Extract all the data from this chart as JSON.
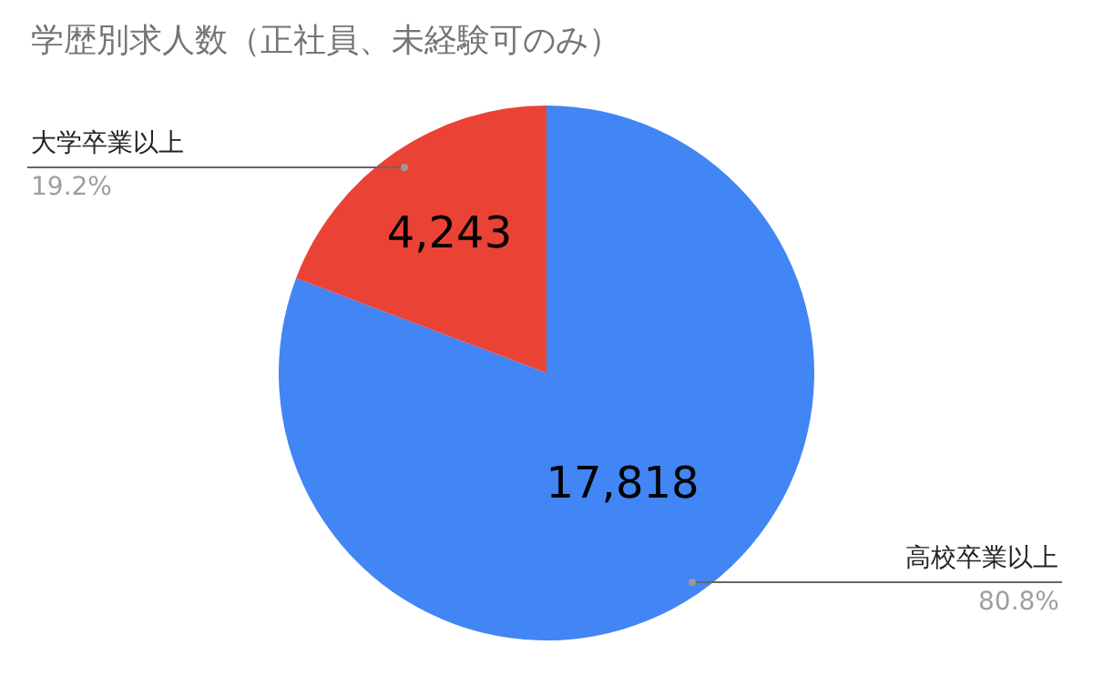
{
  "chart_data": {
    "type": "pie",
    "title": "学歴別求人数（正社員、未経験可のみ）",
    "categories": [
      "大学卒業以上",
      "高校卒業以上"
    ],
    "values": [
      4243,
      17818
    ],
    "colors": [
      "#ea4335",
      "#4285f4"
    ],
    "value_labels": [
      "4,243",
      "17,818"
    ],
    "annotations": [
      "19.2%",
      "80.8%"
    ],
    "legend": false
  }
}
